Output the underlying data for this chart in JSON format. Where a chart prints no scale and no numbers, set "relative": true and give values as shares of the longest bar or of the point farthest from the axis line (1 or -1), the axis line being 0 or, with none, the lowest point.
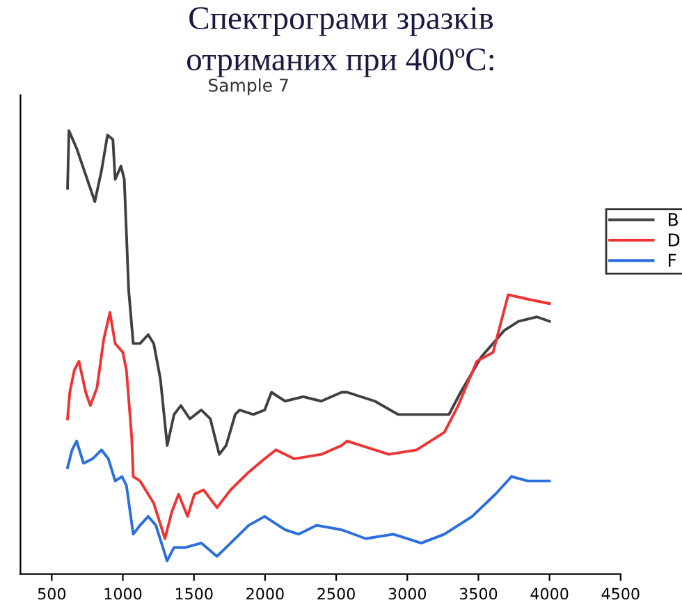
{
  "chart_data": {
    "type": "line",
    "title": "Спектрограми зразків\nотриманих при 400ºC:",
    "subtitle": "Sample 7",
    "relative": true,
    "xlim": [
      280,
      4500
    ],
    "xticks": [
      500,
      1000,
      1500,
      2000,
      2500,
      3000,
      3500,
      4000,
      4500
    ],
    "legend": "right",
    "grid": false,
    "marker": "none",
    "line_style": "solid",
    "series": [
      {
        "name": "B",
        "color": "#404040",
        "x": [
          611,
          621,
          675,
          739,
          803,
          850,
          892,
          930,
          946,
          987,
          1010,
          1041,
          1073,
          1121,
          1178,
          1217,
          1264,
          1312,
          1360,
          1408,
          1471,
          1551,
          1615,
          1678,
          1726,
          1790,
          1822,
          1917,
          1997,
          2045,
          2140,
          2268,
          2395,
          2538,
          2577,
          2772,
          2935,
          3293,
          3375,
          3521,
          3684,
          3782,
          3912,
          4000
        ],
        "values": [
          0.87,
          1.0,
          0.96,
          0.9,
          0.84,
          0.91,
          0.99,
          0.98,
          0.89,
          0.92,
          0.89,
          0.64,
          0.52,
          0.52,
          0.54,
          0.52,
          0.44,
          0.29,
          0.36,
          0.38,
          0.35,
          0.37,
          0.35,
          0.27,
          0.29,
          0.36,
          0.37,
          0.36,
          0.37,
          0.41,
          0.39,
          0.4,
          0.39,
          0.41,
          0.41,
          0.39,
          0.36,
          0.36,
          0.41,
          0.49,
          0.55,
          0.57,
          0.58,
          0.57
        ]
      },
      {
        "name": "D",
        "color": "#ee3333",
        "x": [
          611,
          627,
          659,
          691,
          739,
          771,
          818,
          866,
          909,
          946,
          1000,
          1025,
          1062,
          1073,
          1121,
          1217,
          1296,
          1344,
          1392,
          1455,
          1503,
          1567,
          1662,
          1758,
          1885,
          1997,
          2077,
          2204,
          2395,
          2538,
          2577,
          2870,
          3065,
          3261,
          3358,
          3489,
          3603,
          3710,
          3847,
          4000
        ],
        "values": [
          0.35,
          0.41,
          0.46,
          0.48,
          0.41,
          0.38,
          0.42,
          0.53,
          0.59,
          0.52,
          0.5,
          0.46,
          0.31,
          0.22,
          0.21,
          0.16,
          0.08,
          0.14,
          0.18,
          0.13,
          0.18,
          0.19,
          0.15,
          0.19,
          0.23,
          0.26,
          0.28,
          0.26,
          0.27,
          0.29,
          0.3,
          0.27,
          0.28,
          0.32,
          0.38,
          0.48,
          0.5,
          0.63,
          0.62,
          0.61
        ]
      },
      {
        "name": "F",
        "color": "#2a6fdb",
        "x": [
          611,
          643,
          675,
          723,
          787,
          850,
          898,
          946,
          994,
          1025,
          1073,
          1121,
          1178,
          1232,
          1311,
          1360,
          1440,
          1551,
          1662,
          1758,
          1885,
          1997,
          2140,
          2236,
          2363,
          2538,
          2707,
          2902,
          3098,
          3261,
          3456,
          3619,
          3733,
          3847,
          4000
        ],
        "values": [
          0.24,
          0.28,
          0.3,
          0.25,
          0.26,
          0.28,
          0.26,
          0.21,
          0.22,
          0.2,
          0.09,
          0.11,
          0.13,
          0.11,
          0.03,
          0.06,
          0.06,
          0.07,
          0.04,
          0.07,
          0.11,
          0.13,
          0.1,
          0.09,
          0.11,
          0.1,
          0.08,
          0.09,
          0.07,
          0.09,
          0.13,
          0.18,
          0.22,
          0.21,
          0.21
        ]
      }
    ]
  }
}
